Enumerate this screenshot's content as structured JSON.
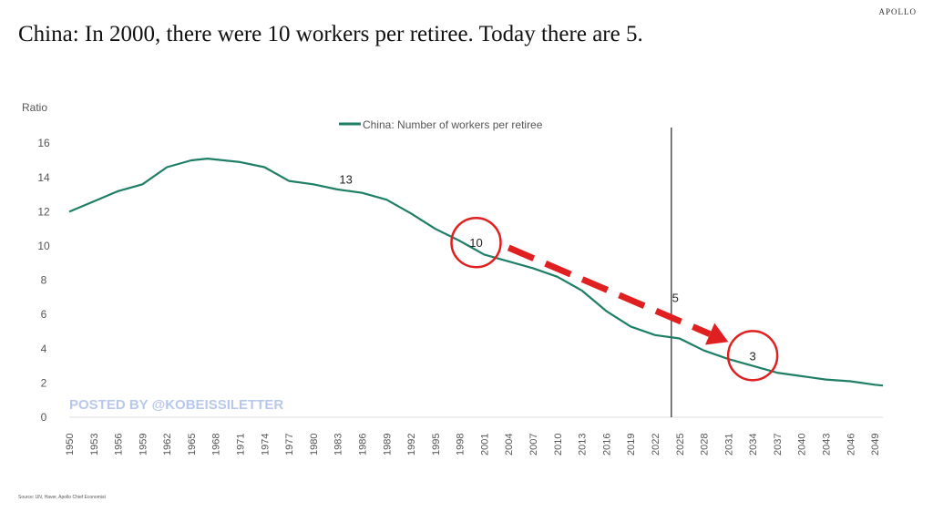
{
  "brand": "APOLLO",
  "title": "China: In 2000, there were 10 workers per retiree. Today there are 5.",
  "source": "Source: UN, Haver, Apollo Chief Economist",
  "watermark": "POSTED BY @KOBEISSILETTER",
  "colors": {
    "line": "#1f7f66",
    "annotation": "#e02020",
    "watermark": "#b8c8ec"
  },
  "chart_data": {
    "type": "line",
    "title": "China: In 2000, there were 10 workers per retiree. Today there are 5.",
    "ylabel": "Ratio",
    "ylim": [
      0,
      16
    ],
    "yticks": [
      0,
      2,
      4,
      6,
      8,
      10,
      12,
      14,
      16
    ],
    "xlim": [
      1950,
      2050
    ],
    "xticks": [
      1950,
      1953,
      1956,
      1959,
      1962,
      1965,
      1968,
      1971,
      1974,
      1977,
      1980,
      1983,
      1986,
      1989,
      1992,
      1995,
      1998,
      2001,
      2004,
      2007,
      2010,
      2013,
      2016,
      2019,
      2022,
      2025,
      2028,
      2031,
      2034,
      2037,
      2040,
      2043,
      2046,
      2049
    ],
    "legend": "top-center",
    "grid": false,
    "series": [
      {
        "name": "China: Number of workers per retiree",
        "x": [
          1950,
          1953,
          1956,
          1959,
          1962,
          1965,
          1967,
          1971,
          1974,
          1977,
          1980,
          1983,
          1986,
          1989,
          1992,
          1995,
          1998,
          2001,
          2004,
          2007,
          2010,
          2013,
          2016,
          2019,
          2022,
          2025,
          2028,
          2031,
          2034,
          2037,
          2040,
          2043,
          2046,
          2049,
          2050
        ],
        "y": [
          12.0,
          12.6,
          13.2,
          13.6,
          14.6,
          15.0,
          15.1,
          14.9,
          14.6,
          13.8,
          13.6,
          13.3,
          13.1,
          12.7,
          11.9,
          11.0,
          10.3,
          9.5,
          9.1,
          8.7,
          8.2,
          7.4,
          6.2,
          5.3,
          4.8,
          4.6,
          3.9,
          3.4,
          3.0,
          2.6,
          2.4,
          2.2,
          2.1,
          1.9,
          1.85
        ]
      }
    ],
    "annotations": [
      {
        "text": "13",
        "x": 1984,
        "y": 13.9
      },
      {
        "text": "10",
        "x": 2000,
        "y": 10.2,
        "circled": true
      },
      {
        "text": "5",
        "x": 2024.5,
        "y": 7.0
      },
      {
        "text": "3",
        "x": 2034,
        "y": 3.6,
        "circled": true
      }
    ],
    "vline": 2024,
    "arrow": {
      "from": [
        2004,
        9.9
      ],
      "to": [
        2031,
        4.4
      ]
    }
  }
}
